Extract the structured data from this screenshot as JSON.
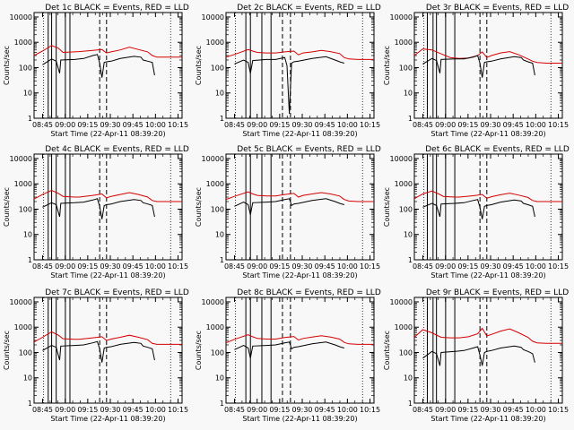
{
  "layout": {
    "rows": 3,
    "cols": 3
  },
  "colors": {
    "background": "#f8f8f8",
    "events": "#000000",
    "lld": "#d40000",
    "axis": "#000000"
  },
  "common": {
    "ylabel": "Counts/sec",
    "xlabel": "Start Time (22-Apr-11 08:39:20)",
    "x_tick_labels": [
      "08:45",
      "09:00",
      "09:15",
      "09:30",
      "09:45",
      "10:00",
      "10:15"
    ],
    "y_tick_labels": [
      "1",
      "10",
      "100",
      "1000",
      "10000"
    ],
    "time_range_min": [
      40.333,
      105.0
    ]
  },
  "chart_data": [
    {
      "type": "line",
      "title": "Det 1c BLACK = Events, RED = LLD",
      "xlim_minutes": [
        40.333,
        105.0
      ],
      "ylim": [
        1,
        15000
      ],
      "yscale": "log",
      "solid_vlines_min": [
        46.5,
        48.0,
        50.0,
        54.0,
        56.0
      ],
      "dashed_vlines_min": [
        69.0,
        72.0
      ],
      "series": [
        {
          "x": [
            40.333,
            44,
            48,
            51,
            53,
            58,
            60,
            66,
            70,
            72,
            74,
            78,
            82,
            86,
            90,
            92,
            94,
            98,
            102,
            105
          ],
          "y": [
            300,
            450,
            750,
            580,
            400,
            420,
            430,
            480,
            520,
            380,
            420,
            500,
            640,
            520,
            420,
            300,
            260,
            260,
            260,
            260
          ]
        },
        {
          "x": [
            44,
            48,
            50,
            51.5,
            52,
            58,
            62,
            66,
            68,
            69,
            70,
            71,
            72,
            74,
            78,
            84,
            87,
            88,
            90,
            92,
            93
          ],
          "y": [
            130,
            220,
            180,
            60,
            200,
            210,
            230,
            300,
            330,
            150,
            40,
            160,
            170,
            180,
            230,
            280,
            260,
            200,
            180,
            160,
            50
          ]
        }
      ]
    },
    {
      "type": "line",
      "title": "Det 2c BLACK = Events, RED = LLD",
      "xlim_minutes": [
        40.333,
        105.0
      ],
      "ylim": [
        1,
        15000
      ],
      "yscale": "log",
      "solid_vlines_min": [
        49.0,
        51.0,
        56.0,
        60.0
      ],
      "dashed_vlines_min": [
        65.0,
        68.5
      ],
      "series": [
        {
          "x": [
            40.333,
            44,
            50,
            52,
            54,
            58,
            62,
            66,
            70,
            72,
            74,
            78,
            82,
            86,
            90,
            92,
            94,
            98,
            102,
            105
          ],
          "y": [
            260,
            330,
            520,
            450,
            400,
            380,
            380,
            420,
            450,
            320,
            380,
            420,
            480,
            430,
            360,
            250,
            220,
            210,
            210,
            210
          ]
        },
        {
          "x": [
            44,
            48,
            50,
            51,
            52,
            58,
            62,
            66,
            67,
            68,
            69,
            70,
            72,
            78,
            84,
            88,
            90,
            92
          ],
          "y": [
            140,
            200,
            160,
            60,
            190,
            210,
            210,
            250,
            120,
            1.5,
            150,
            170,
            180,
            230,
            270,
            200,
            170,
            150
          ]
        }
      ]
    },
    {
      "type": "line",
      "title": "Det 3r BLACK = Events, RED = LLD",
      "xlim_minutes": [
        40.333,
        105.0
      ],
      "ylim": [
        1,
        15000
      ],
      "yscale": "log",
      "solid_vlines_min": [
        46.0,
        48.5,
        50.0,
        54.0,
        58.0
      ],
      "dashed_vlines_min": [
        69.0,
        72.0
      ],
      "series": [
        {
          "x": [
            40.333,
            44,
            48,
            52,
            56,
            60,
            64,
            68,
            70,
            72,
            74,
            78,
            82,
            86,
            90,
            92,
            94,
            98,
            102,
            105
          ],
          "y": [
            300,
            550,
            500,
            350,
            250,
            230,
            240,
            300,
            420,
            250,
            300,
            380,
            430,
            320,
            220,
            180,
            160,
            150,
            150,
            150
          ]
        },
        {
          "x": [
            44,
            48,
            50,
            51.5,
            52,
            58,
            62,
            66,
            68,
            69,
            70,
            71,
            72,
            74,
            78,
            84,
            87,
            88,
            90,
            92,
            93
          ],
          "y": [
            140,
            230,
            190,
            60,
            210,
            220,
            220,
            260,
            300,
            150,
            40,
            160,
            170,
            180,
            220,
            270,
            250,
            200,
            170,
            150,
            50
          ]
        }
      ]
    },
    {
      "type": "line",
      "title": "Det 4c BLACK = Events, RED = LLD",
      "xlim_minutes": [
        40.333,
        105.0
      ],
      "ylim": [
        1,
        15000
      ],
      "yscale": "log",
      "solid_vlines_min": [
        46.5,
        48.0,
        50.0,
        54.0,
        56.0
      ],
      "dashed_vlines_min": [
        69.0,
        72.0
      ],
      "series": [
        {
          "x": [
            40.333,
            44,
            48,
            51,
            53,
            58,
            60,
            66,
            70,
            72,
            74,
            78,
            82,
            86,
            90,
            92,
            94,
            98,
            102,
            105
          ],
          "y": [
            250,
            380,
            550,
            420,
            320,
            300,
            300,
            350,
            400,
            280,
            320,
            380,
            450,
            380,
            300,
            220,
            200,
            200,
            200,
            200
          ]
        },
        {
          "x": [
            44,
            48,
            50,
            51.5,
            52,
            58,
            62,
            66,
            68,
            69,
            70,
            71,
            72,
            74,
            78,
            84,
            87,
            88,
            90,
            92,
            93
          ],
          "y": [
            120,
            180,
            150,
            50,
            170,
            180,
            190,
            230,
            260,
            130,
            40,
            140,
            150,
            160,
            200,
            240,
            220,
            180,
            160,
            140,
            50
          ]
        }
      ]
    },
    {
      "type": "line",
      "title": "Det 5c BLACK = Events, RED = LLD",
      "xlim_minutes": [
        40.333,
        105.0
      ],
      "ylim": [
        1,
        15000
      ],
      "yscale": "log",
      "solid_vlines_min": [
        49.0,
        51.0,
        56.0,
        60.0
      ],
      "dashed_vlines_min": [
        65.0,
        68.5
      ],
      "series": [
        {
          "x": [
            40.333,
            44,
            50,
            52,
            54,
            58,
            62,
            66,
            70,
            72,
            74,
            78,
            82,
            86,
            90,
            92,
            94,
            98,
            102,
            105
          ],
          "y": [
            240,
            320,
            480,
            400,
            350,
            330,
            330,
            380,
            420,
            300,
            350,
            400,
            450,
            400,
            330,
            240,
            210,
            200,
            200,
            200
          ]
        },
        {
          "x": [
            44,
            48,
            50,
            51,
            52,
            58,
            62,
            66,
            68,
            69,
            70,
            72,
            78,
            84,
            88,
            90,
            92
          ],
          "y": [
            130,
            190,
            150,
            60,
            180,
            190,
            200,
            240,
            260,
            140,
            160,
            170,
            220,
            260,
            200,
            170,
            150
          ]
        }
      ]
    },
    {
      "type": "line",
      "title": "Det 6c BLACK = Events, RED = LLD",
      "xlim_minutes": [
        40.333,
        105.0
      ],
      "ylim": [
        1,
        15000
      ],
      "yscale": "log",
      "solid_vlines_min": [
        46.0,
        48.5,
        50.0,
        54.0,
        58.0
      ],
      "dashed_vlines_min": [
        69.0,
        72.0
      ],
      "series": [
        {
          "x": [
            40.333,
            44,
            48,
            51,
            53,
            58,
            60,
            66,
            70,
            72,
            74,
            78,
            82,
            86,
            90,
            92,
            94,
            98,
            102,
            105
          ],
          "y": [
            260,
            400,
            520,
            400,
            320,
            300,
            300,
            340,
            380,
            270,
            310,
            370,
            430,
            360,
            290,
            220,
            200,
            200,
            200,
            200
          ]
        },
        {
          "x": [
            44,
            48,
            50,
            51.5,
            52,
            58,
            62,
            66,
            68,
            69,
            70,
            71,
            72,
            74,
            78,
            84,
            87,
            88,
            90,
            92,
            93
          ],
          "y": [
            120,
            170,
            140,
            50,
            160,
            170,
            180,
            220,
            240,
            120,
            40,
            130,
            140,
            150,
            190,
            230,
            210,
            170,
            150,
            130,
            50
          ]
        }
      ]
    },
    {
      "type": "line",
      "title": "Det 7c BLACK = Events, RED = LLD",
      "xlim_minutes": [
        40.333,
        105.0
      ],
      "ylim": [
        1,
        15000
      ],
      "yscale": "log",
      "solid_vlines_min": [
        46.5,
        48.0,
        50.0,
        54.0,
        56.0
      ],
      "dashed_vlines_min": [
        69.0,
        72.0
      ],
      "series": [
        {
          "x": [
            40.333,
            44,
            48,
            51,
            53,
            58,
            60,
            66,
            70,
            72,
            74,
            78,
            82,
            86,
            90,
            92,
            94,
            98,
            102,
            105
          ],
          "y": [
            260,
            400,
            650,
            480,
            350,
            330,
            330,
            380,
            420,
            300,
            340,
            400,
            480,
            400,
            320,
            230,
            210,
            210,
            210,
            210
          ]
        },
        {
          "x": [
            44,
            48,
            50,
            51.5,
            52,
            58,
            62,
            66,
            68,
            69,
            70,
            71,
            72,
            74,
            78,
            84,
            87,
            88,
            90,
            92,
            93
          ],
          "y": [
            120,
            190,
            160,
            50,
            180,
            190,
            200,
            240,
            270,
            140,
            40,
            150,
            160,
            170,
            210,
            250,
            230,
            180,
            160,
            140,
            50
          ]
        }
      ]
    },
    {
      "type": "line",
      "title": "Det 8c BLACK = Events, RED = LLD",
      "xlim_minutes": [
        40.333,
        105.0
      ],
      "ylim": [
        1,
        15000
      ],
      "yscale": "log",
      "solid_vlines_min": [
        49.0,
        51.0,
        56.0,
        60.0
      ],
      "dashed_vlines_min": [
        65.0,
        68.5
      ],
      "series": [
        {
          "x": [
            40.333,
            44,
            50,
            52,
            54,
            58,
            62,
            66,
            70,
            72,
            74,
            78,
            82,
            86,
            90,
            92,
            94,
            98,
            102,
            105
          ],
          "y": [
            240,
            330,
            500,
            420,
            360,
            340,
            340,
            390,
            430,
            310,
            360,
            410,
            460,
            410,
            340,
            250,
            220,
            210,
            210,
            210
          ]
        },
        {
          "x": [
            44,
            48,
            50,
            51,
            52,
            58,
            62,
            66,
            68,
            69,
            70,
            72,
            78,
            84,
            88,
            90,
            92
          ],
          "y": [
            130,
            190,
            150,
            60,
            180,
            190,
            200,
            240,
            260,
            140,
            160,
            170,
            220,
            260,
            200,
            170,
            150
          ]
        }
      ]
    },
    {
      "type": "line",
      "title": "Det 9r BLACK = Events, RED = LLD",
      "xlim_minutes": [
        40.333,
        105.0
      ],
      "ylim": [
        1,
        15000
      ],
      "yscale": "log",
      "solid_vlines_min": [
        46.0,
        48.5,
        50.0,
        54.0,
        58.0
      ],
      "dashed_vlines_min": [
        69.0,
        72.0
      ],
      "series": [
        {
          "x": [
            40.333,
            44,
            48,
            52,
            56,
            60,
            64,
            68,
            70,
            72,
            74,
            78,
            82,
            86,
            90,
            92,
            94,
            98,
            102,
            105
          ],
          "y": [
            400,
            800,
            600,
            400,
            380,
            380,
            420,
            550,
            900,
            450,
            520,
            700,
            850,
            600,
            400,
            280,
            240,
            230,
            230,
            230
          ]
        },
        {
          "x": [
            44,
            48,
            50,
            51.5,
            52,
            58,
            62,
            66,
            68,
            69,
            70,
            71,
            72,
            74,
            78,
            84,
            87,
            88,
            90,
            92,
            93
          ],
          "y": [
            60,
            110,
            90,
            30,
            100,
            110,
            120,
            150,
            170,
            80,
            30,
            100,
            110,
            120,
            150,
            180,
            160,
            130,
            110,
            90,
            40
          ]
        }
      ]
    }
  ]
}
